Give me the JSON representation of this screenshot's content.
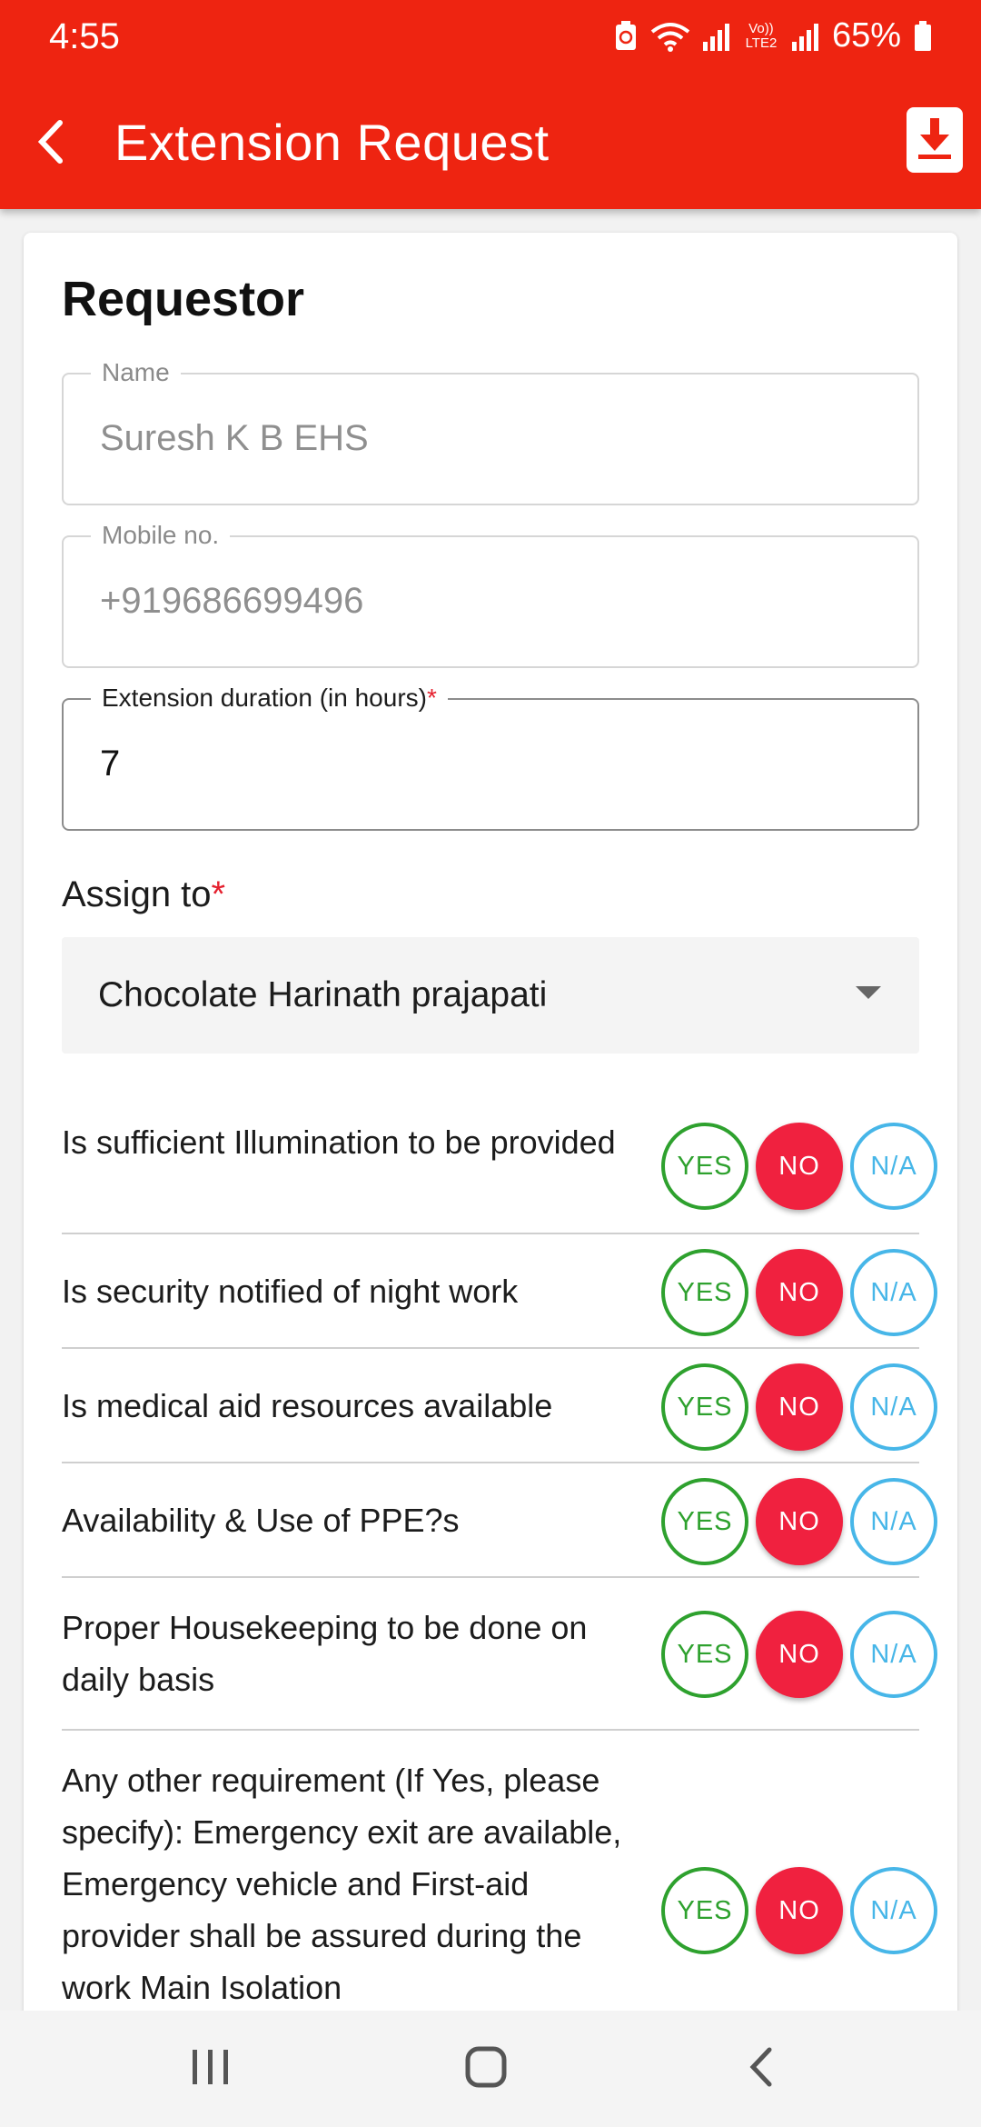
{
  "status_bar": {
    "time": "4:55",
    "network": "Vo)) LTE2",
    "battery": "65%",
    "icons": [
      "battery-saver-icon",
      "wifi-icon",
      "signal-icon",
      "signal-icon",
      "battery-icon"
    ]
  },
  "header": {
    "title": "Extension Request",
    "back_icon": "back-arrow-icon",
    "download_icon": "download-icon"
  },
  "form": {
    "section_title": "Requestor",
    "name": {
      "label": "Name",
      "value": "Suresh K B EHS"
    },
    "mobile": {
      "label": "Mobile no.",
      "value": "+919686699496"
    },
    "duration": {
      "label": "Extension duration (in hours)",
      "required_mark": "*",
      "value": "7"
    },
    "assign": {
      "label": "Assign to",
      "required_mark": "*",
      "selected": "Chocolate Harinath prajapati"
    }
  },
  "options": {
    "yes": "YES",
    "no": "NO",
    "na": "N/A"
  },
  "questions": [
    {
      "text": "Is sufficient Illumination to be provided",
      "selected": "NO"
    },
    {
      "text": "Is security notified of night work",
      "selected": "NO"
    },
    {
      "text": "Is medical aid resources available",
      "selected": "NO"
    },
    {
      "text": "Availability & Use of PPE?s",
      "selected": "NO"
    },
    {
      "text": "Proper Housekeeping to be done on daily basis",
      "selected": "NO"
    },
    {
      "text": "Any other requirement (If Yes, please specify):  Emergency exit are available, Emergency vehicle and First-aid provider shall be assured during the work  Main Isolation",
      "selected": "NO"
    }
  ],
  "colors": {
    "app_bar": "#ee2411",
    "yes": "#2ea12e",
    "no": "#f0213f",
    "na": "#47b6e8"
  },
  "nav_bar": {
    "icons": [
      "recent-apps-icon",
      "home-icon",
      "back-icon"
    ]
  }
}
